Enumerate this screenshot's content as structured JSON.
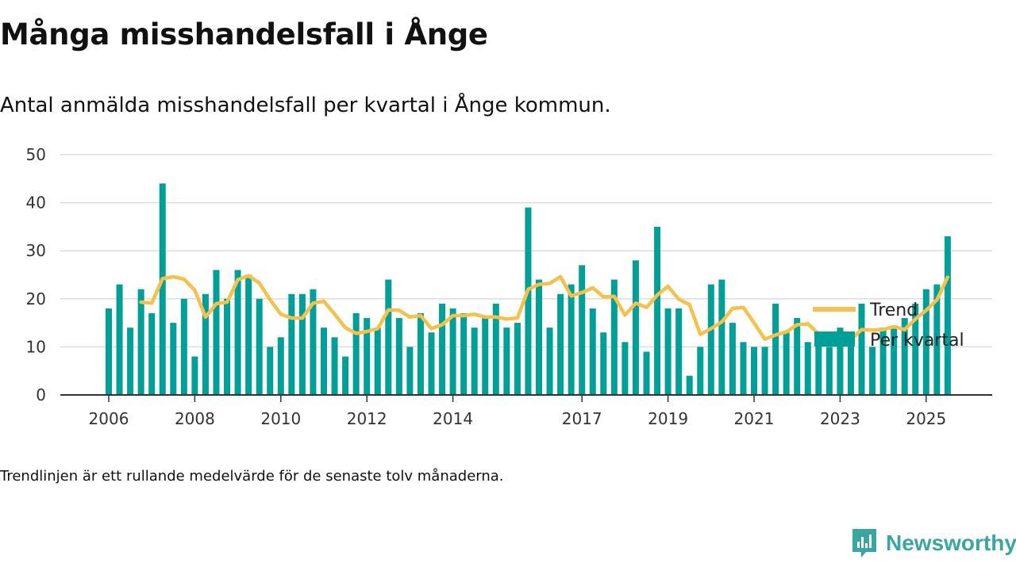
{
  "header": {
    "title": "Många misshandelsfall i Ånge",
    "subtitle": "Antal anmälda misshandelsfall per kvartal i Ånge kommun."
  },
  "footer": {
    "note": "Trendlinjen är ett rullande medelvärde för de senaste tolv månaderna.",
    "brand": "Newsworthy"
  },
  "colors": {
    "bars": "#00a098",
    "trend": "#f5c14d",
    "grid": "#dddddd",
    "axis": "#333333",
    "brand": "#3aa6a0"
  },
  "chart_data": {
    "type": "bar",
    "title": "Många misshandelsfall i Ånge",
    "ylim": [
      0,
      50
    ],
    "yticks": [
      0,
      10,
      20,
      30,
      40,
      50
    ],
    "grid": true,
    "legend_position": "top-right",
    "x_tick_labels": [
      "2006",
      "2008",
      "2010",
      "2012",
      "2014",
      "2017",
      "2019",
      "2021",
      "2023",
      "2025"
    ],
    "x_tick_index": [
      0,
      8,
      16,
      24,
      32,
      44,
      52,
      60,
      68,
      76
    ],
    "series": [
      {
        "name": "Per kvartal",
        "type": "bar",
        "start_index": 0,
        "values": [
          18,
          23,
          14,
          22,
          17,
          44,
          15,
          20,
          8,
          21,
          26,
          20,
          26,
          25,
          20,
          10,
          12,
          21,
          21,
          22,
          14,
          12,
          8,
          17,
          16,
          14,
          24,
          16,
          10,
          17,
          13,
          19,
          18,
          17,
          14,
          16,
          19,
          14,
          15,
          39,
          24,
          14,
          21,
          23,
          27,
          18,
          13,
          24,
          11,
          28,
          9,
          35,
          18,
          18,
          4,
          10,
          23,
          24,
          15,
          11,
          10,
          10,
          19,
          13,
          16,
          11,
          11,
          10,
          14,
          11,
          19,
          10,
          14,
          14,
          16,
          19,
          22,
          23,
          33
        ]
      },
      {
        "name": "Trend",
        "type": "line",
        "start_index": 3,
        "values": [
          19.3,
          19.1,
          24.2,
          24.6,
          24.1,
          21.8,
          16.2,
          19,
          19.3,
          24,
          24.8,
          23.3,
          19.8,
          16.8,
          16,
          16,
          19.1,
          19.5,
          16.8,
          14,
          12.8,
          13.2,
          13.8,
          17.7,
          17.6,
          16.2,
          16.5,
          13.8,
          14.6,
          16.5,
          16.5,
          16.8,
          16.2,
          16.2,
          15.8,
          16,
          22,
          23,
          23.2,
          24.6,
          20.6,
          21.3,
          22.3,
          20.4,
          20.5,
          16.6,
          19.1,
          18.2,
          20.8,
          22.6,
          19.9,
          18.8,
          12.6,
          13.8,
          15.2,
          18,
          18.2,
          15,
          11.6,
          12.5,
          13.1,
          14.6,
          14.8,
          12.7,
          12,
          11.5,
          11.5,
          13.6,
          13.5,
          13.6,
          14.2,
          13.6,
          15.8,
          17.6,
          19.8,
          24.5
        ]
      }
    ]
  }
}
